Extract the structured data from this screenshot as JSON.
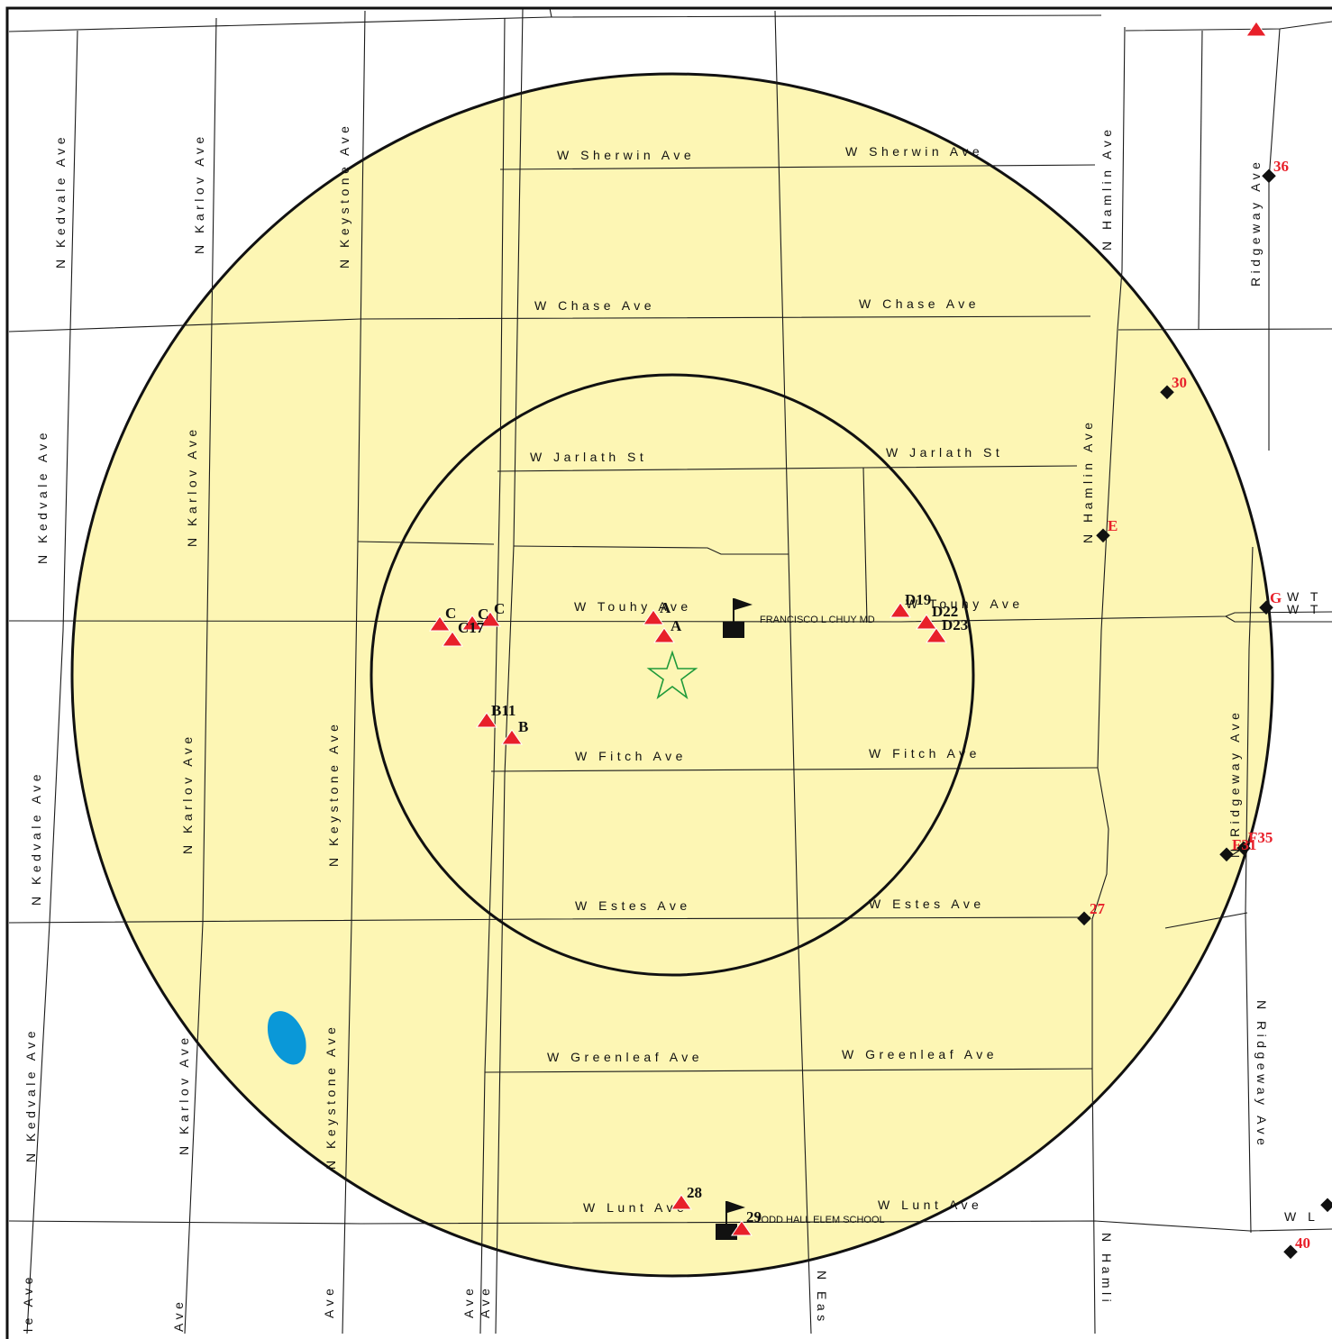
{
  "map": {
    "colors": {
      "buffer_fill": "#fdf6b4",
      "ring_stroke": "#111111",
      "road": "#1a1a1a",
      "water": "#0a98d8",
      "red_marker": "#e8202a",
      "red_label": "#e8202a",
      "black_label": "#111111",
      "diamond": "#111111",
      "star": "#1f9a3a"
    },
    "street_labels": [
      "W Sherwin Ave",
      "W Sherwin Ave",
      "W Chase Ave",
      "W Chase Ave",
      "W Jarlath St",
      "W Jarlath St",
      "W Touhy Ave",
      "W Touhy Ave",
      "W Fitch Ave",
      "W Fitch Ave",
      "W Estes Ave",
      "W Estes Ave",
      "W Greenleaf Ave",
      "W Greenleaf Ave",
      "W Lunt Ave",
      "W Lunt Ave",
      "N Kedvale Ave",
      "N Kedvale Ave",
      "N Kedvale Ave",
      "N Kedvale Ave",
      "N Karlov Ave",
      "N Karlov Ave",
      "N Karlov Ave",
      "N Karlov Ave",
      "N Keystone Ave",
      "N Keystone Ave",
      "N Keystone Ave",
      "N Hamlin Ave",
      "N Hamlin Ave",
      "Ridgeway Ave",
      "N Ridgeway Ave",
      "N Ridgeway Ave",
      "N Hamli",
      "N Eas",
      "le Ave",
      "Ave",
      "Ave",
      "Ave",
      "Ave",
      "W T",
      "W T",
      "W L"
    ],
    "red_labels": [
      "36",
      "30",
      "E",
      "G",
      "F35",
      "F31",
      "27",
      "40"
    ],
    "black_labels": [
      "C",
      "C",
      "C",
      "C17",
      "A",
      "A",
      "D19",
      "D22",
      "D23",
      "B11",
      "B",
      "28",
      "29"
    ],
    "poi": {
      "clinic": "FRANCISCO L CHUY MD",
      "school": "TODD HALL ELEM SCHOOL"
    },
    "icons": {
      "site_center": "star-icon",
      "facility": "flag-icon",
      "sample_site": "triangle-marker-icon",
      "well": "diamond-marker-icon"
    }
  }
}
